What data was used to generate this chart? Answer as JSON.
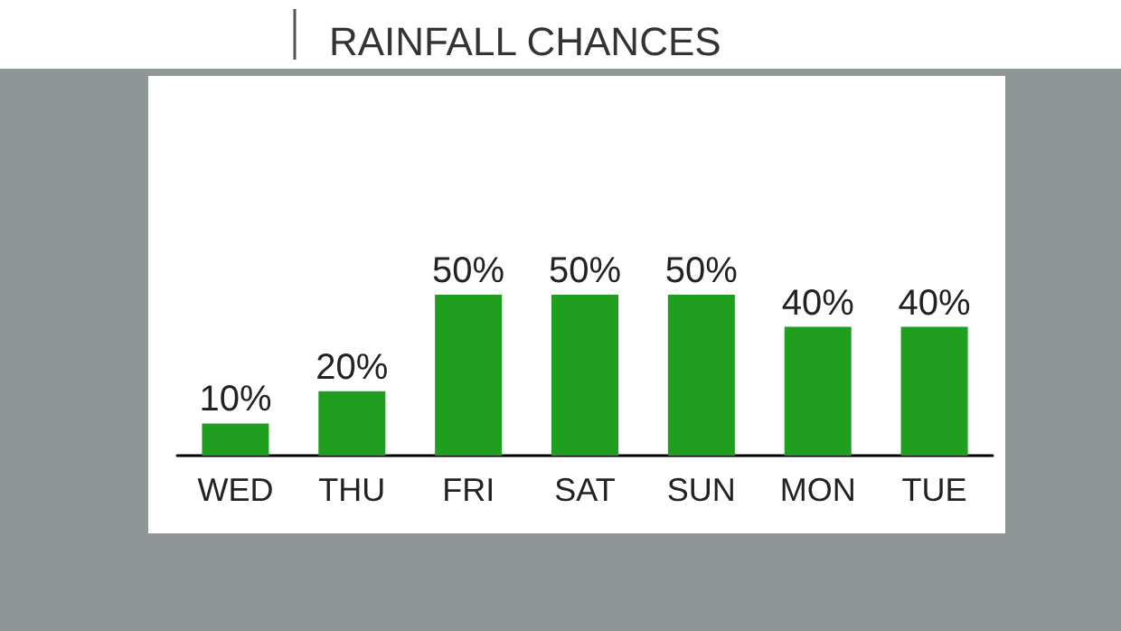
{
  "chart_data": {
    "type": "bar",
    "title": "RAINFALL CHANCES",
    "categories": [
      "WED",
      "THU",
      "FRI",
      "SAT",
      "SUN",
      "MON",
      "TUE"
    ],
    "values": [
      10,
      20,
      50,
      50,
      50,
      40,
      40
    ],
    "value_labels": [
      "10%",
      "20%",
      "50%",
      "50%",
      "50%",
      "40%",
      "40%"
    ],
    "color": "#1f9e1f"
  }
}
